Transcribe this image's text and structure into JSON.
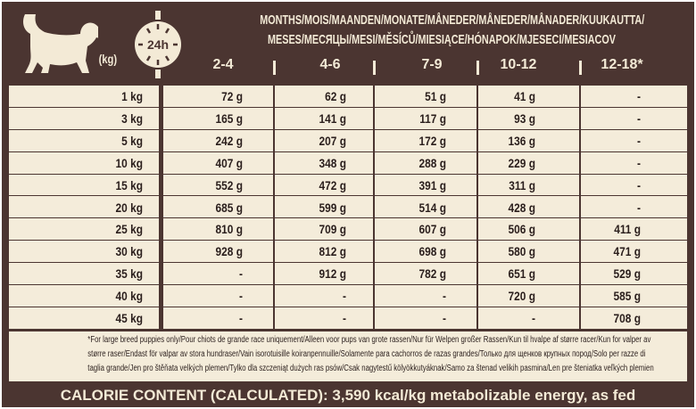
{
  "header": {
    "weight_unit": "(kg)",
    "clock_label": "24h",
    "months_line1": "MONTHS/MOIS/MAANDEN/MONATE/MÅNEDER/MÅNEDER/MÅNADER/KUUKAUTTA/",
    "months_line2": "MESES/МЕСЯЦЫ/MESI/MĚSÍCŮ/MIESIĄCE/HÓNAPOK/MJESECI/MESIACOV",
    "age_columns": [
      "2-4",
      "4-6",
      "7-9",
      "10-12",
      "12-18*"
    ]
  },
  "rows": [
    {
      "weight": "1 kg",
      "values": [
        "72 g",
        "62 g",
        "51 g",
        "41 g",
        "-"
      ]
    },
    {
      "weight": "3 kg",
      "values": [
        "165 g",
        "141 g",
        "117 g",
        "93 g",
        "-"
      ]
    },
    {
      "weight": "5 kg",
      "values": [
        "242 g",
        "207 g",
        "172 g",
        "136 g",
        "-"
      ]
    },
    {
      "weight": "10 kg",
      "values": [
        "407 g",
        "348 g",
        "288 g",
        "229 g",
        "-"
      ]
    },
    {
      "weight": "15 kg",
      "values": [
        "552 g",
        "472 g",
        "391 g",
        "311 g",
        "-"
      ]
    },
    {
      "weight": "20 kg",
      "values": [
        "685 g",
        "599 g",
        "514 g",
        "428 g",
        "-"
      ]
    },
    {
      "weight": "25 kg",
      "values": [
        "810 g",
        "709 g",
        "607 g",
        "506 g",
        "411 g"
      ]
    },
    {
      "weight": "30 kg",
      "values": [
        "928 g",
        "812 g",
        "698 g",
        "580 g",
        "471 g"
      ]
    },
    {
      "weight": "35 kg",
      "values": [
        "-",
        "912 g",
        "782 g",
        "651 g",
        "529 g"
      ]
    },
    {
      "weight": "40 kg",
      "values": [
        "-",
        "-",
        "-",
        "720 g",
        "585 g"
      ]
    },
    {
      "weight": "45 kg",
      "values": [
        "-",
        "-",
        "-",
        "-",
        "708 g"
      ]
    }
  ],
  "footnote": [
    "*For large breed puppies only/Pour chiots de grande race uniquement/Alleen voor pups van grote rassen/Nur für Welpen großer Rassen/Kun til hvalpe af større racer/Kun for valper av",
    "større raser/Endast för valpar av stora hundraser/Vain isorotuisille koiranpennuille/Solamente para cachorros de razas grandes/Только для щенков крупных пород/Solo per razze di",
    "taglia grande/Jen pro štěňata velkých plemen/Tylko dla szczeniąt dużych ras psów/Csak nagytestű kölyökkutyáknak/Samo za štenad velikih pasmina/Len pre šteniatka veľkých plemien"
  ],
  "calorie": "CALORIE CONTENT (CALCULATED): 3,590 kcal/kg metabolizable energy, as fed",
  "colors": {
    "brown": "#4b3531",
    "cream": "#f4ecda"
  }
}
